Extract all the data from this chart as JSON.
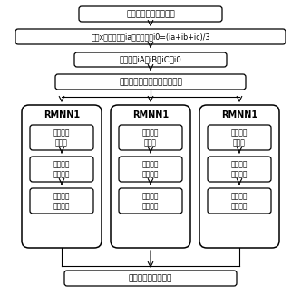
{
  "box1": "输入三相电流故障数据",
  "box2_part1": "提取x相故障分量i",
  "box2_sub1": "a",
  "box2_part2": "，零序分量i",
  "box2_sub2": "0",
  "box2_part3": "=(i",
  "box2_sub3": "a",
  "box2_part4": "+i",
  "box2_sub4": "b",
  "box2_part5": "+i",
  "box2_sub5": "c",
  "box2_part6": ")/3",
  "box2_full": "提取x相故障分量ia，零序分量i0=(ia+ib+ic)/3",
  "box3": "小波变换iA、iB、iC、i0",
  "box4": "提取特征时域、时频域特征量",
  "rmnn_labels": [
    "RMNN1",
    "RMNN1",
    "RMNN1"
  ],
  "inner_box1": "输入层组\n神经元",
  "inner_box2": "隐含层模\n糊神经元",
  "inner_box3": "输出层模\n糊神经元",
  "bottom_box": "决策层输入故障类型",
  "bg_color": "#ffffff",
  "figsize": [
    3.32,
    3.36
  ],
  "dpi": 100
}
